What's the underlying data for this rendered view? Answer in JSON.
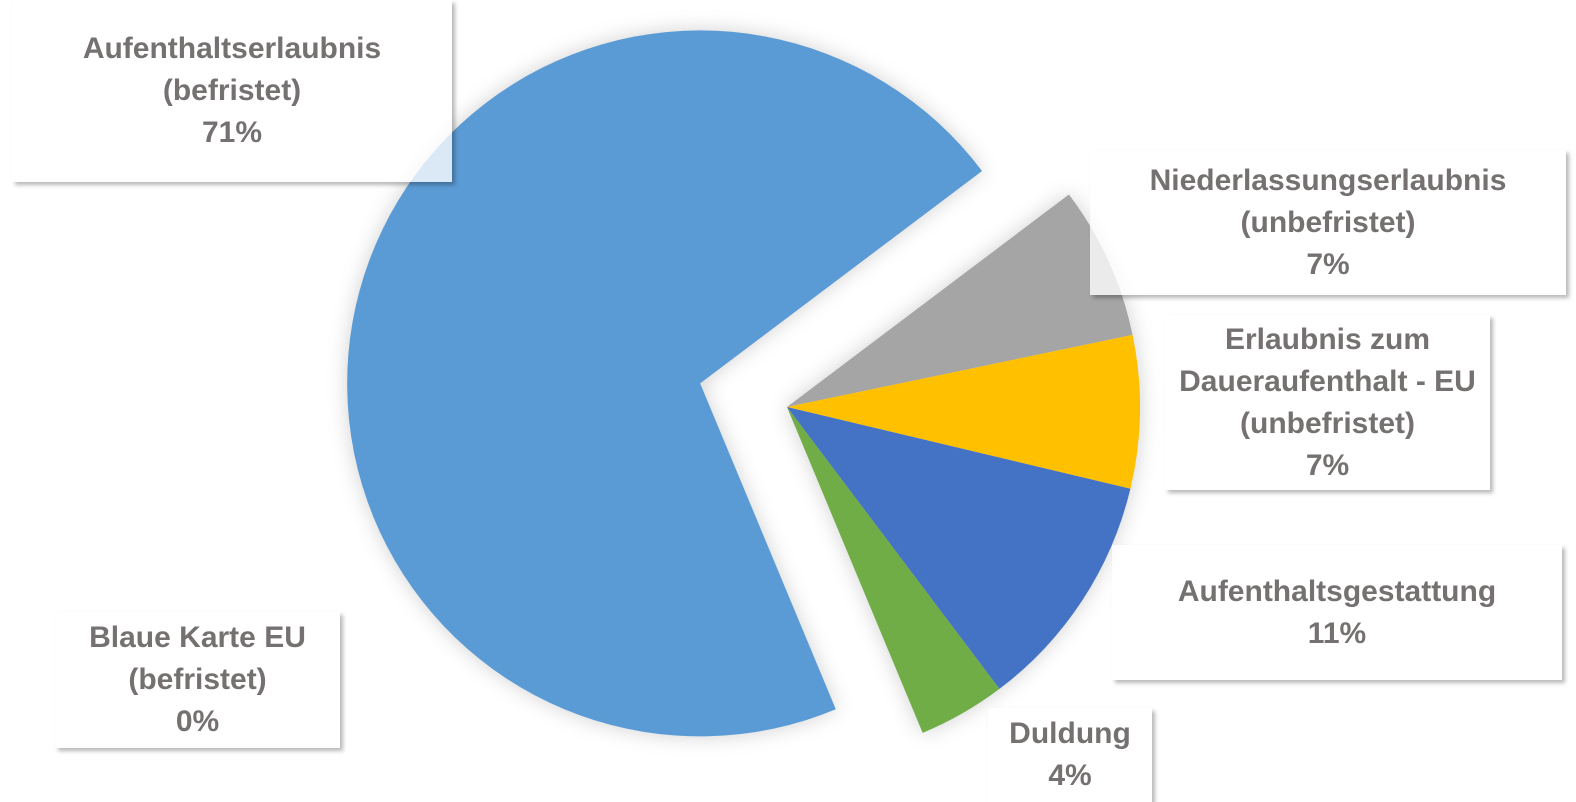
{
  "chart_data": {
    "type": "pie",
    "categories": [
      "Niederlassungserlaubnis (unbefristet)",
      "Erlaubnis zum Daueraufenthalt - EU (unbefristet)",
      "Aufenthaltsgestattung",
      "Duldung",
      "Blaue Karte EU (befristet)",
      "Aufenthaltserlaubnis (befristet)"
    ],
    "values": [
      7,
      7,
      11,
      4,
      0,
      71
    ],
    "value_labels": [
      "7%",
      "7%",
      "11%",
      "4%",
      "0%",
      "71%"
    ],
    "colors": [
      "#a5a5a5",
      "#ffc000",
      "#4472c4",
      "#70ad47",
      "#ed7d31",
      "#5b9bd5"
    ]
  }
}
